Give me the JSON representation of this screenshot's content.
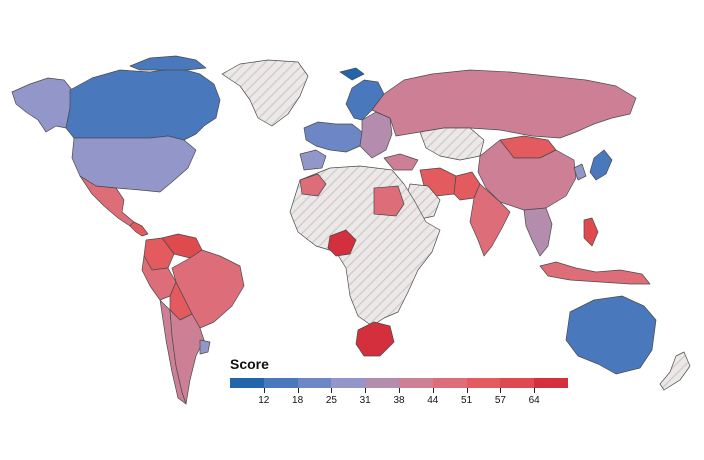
{
  "legend": {
    "title": "Score",
    "tick_labels": [
      "12",
      "18",
      "25",
      "31",
      "38",
      "44",
      "51",
      "57",
      "64"
    ],
    "colors": [
      "#2166ac",
      "#4a78bd",
      "#6d86c6",
      "#9296c9",
      "#b38cae",
      "#cc7f95",
      "#de6d7a",
      "#e35a5f",
      "#df4a4e",
      "#d32f3c"
    ]
  },
  "colors": {
    "no_data_fill": "#ece8e8",
    "no_data_hatch": "#cfc8c8",
    "border": "#4a4a4a"
  },
  "regions": [
    {
      "name": "Canada",
      "color": "#4a78bd"
    },
    {
      "name": "Alaska (USA)",
      "color": "#9296c9"
    },
    {
      "name": "United States",
      "color": "#9296c9"
    },
    {
      "name": "Greenland",
      "color": "no-data"
    },
    {
      "name": "Mexico",
      "color": "#de6d7a"
    },
    {
      "name": "Central America",
      "color": "#e35a5f"
    },
    {
      "name": "Colombia",
      "color": "#e35a5f"
    },
    {
      "name": "Venezuela",
      "color": "#df4a4e"
    },
    {
      "name": "Brazil",
      "color": "#de6d7a"
    },
    {
      "name": "Peru",
      "color": "#de6d7a"
    },
    {
      "name": "Bolivia",
      "color": "#e35a5f"
    },
    {
      "name": "Chile",
      "color": "#cc7f95"
    },
    {
      "name": "Argentina",
      "color": "#cc7f95"
    },
    {
      "name": "Uruguay",
      "color": "#9296c9"
    },
    {
      "name": "Iceland",
      "color": "#2166ac"
    },
    {
      "name": "Scandinavia",
      "color": "#4a78bd"
    },
    {
      "name": "Western Europe",
      "color": "#6d86c6"
    },
    {
      "name": "Spain",
      "color": "#9296c9"
    },
    {
      "name": "Eastern Europe",
      "color": "#b38cae"
    },
    {
      "name": "Russia",
      "color": "#cc7f95"
    },
    {
      "name": "Kazakhstan",
      "color": "no-data"
    },
    {
      "name": "Mongolia",
      "color": "#e35a5f"
    },
    {
      "name": "China",
      "color": "#cc7f95"
    },
    {
      "name": "Japan",
      "color": "#4a78bd"
    },
    {
      "name": "Korea",
      "color": "#9296c9"
    },
    {
      "name": "Turkey",
      "color": "#cc7f95"
    },
    {
      "name": "Iran",
      "color": "#e35a5f"
    },
    {
      "name": "Pakistan",
      "color": "#e35a5f"
    },
    {
      "name": "India",
      "color": "#de6d7a"
    },
    {
      "name": "Southeast Asia",
      "color": "#b38cae"
    },
    {
      "name": "Indonesia",
      "color": "#de6d7a"
    },
    {
      "name": "Philippines",
      "color": "#df4a4e"
    },
    {
      "name": "Australia",
      "color": "#4a78bd"
    },
    {
      "name": "New Zealand",
      "color": "no-data"
    },
    {
      "name": "Morocco",
      "color": "#de6d7a"
    },
    {
      "name": "Egypt",
      "color": "#de6d7a"
    },
    {
      "name": "Nigeria",
      "color": "#d32f3c"
    },
    {
      "name": "South Africa",
      "color": "#d32f3c"
    },
    {
      "name": "Africa (other)",
      "color": "no-data"
    },
    {
      "name": "Arabian Peninsula",
      "color": "no-data"
    }
  ]
}
